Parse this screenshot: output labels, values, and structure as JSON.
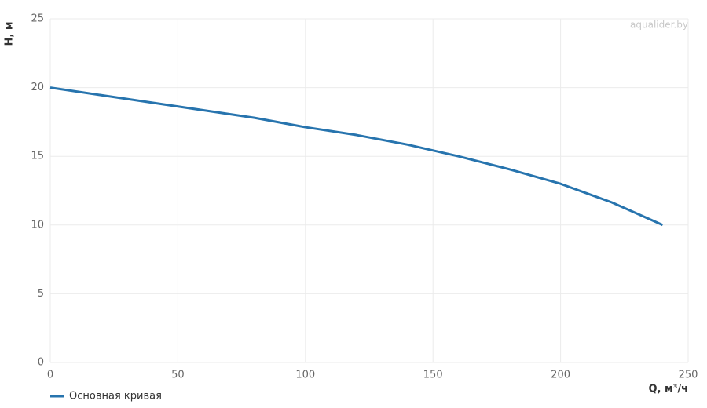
{
  "chart_data": {
    "type": "line",
    "watermark": "aqualider.by",
    "x_label": "Q, м³/ч",
    "y_label": "H, м",
    "x": [
      0,
      20,
      40,
      60,
      80,
      100,
      120,
      140,
      160,
      180,
      200,
      220,
      240
    ],
    "series": [
      {
        "name": "Основная кривая",
        "color": "#2774ae",
        "values": [
          20,
          19.45,
          18.9,
          18.35,
          17.8,
          17.12,
          16.55,
          15.85,
          15.0,
          14.05,
          13.0,
          11.65,
          10.0
        ]
      }
    ],
    "xlim": [
      0,
      250
    ],
    "xticks": [
      0,
      50,
      100,
      150,
      200,
      250
    ],
    "ylim": [
      0,
      25
    ],
    "yticks": [
      0,
      5,
      10,
      15,
      20,
      25
    ],
    "grid": true,
    "legend": "bottom-left"
  }
}
